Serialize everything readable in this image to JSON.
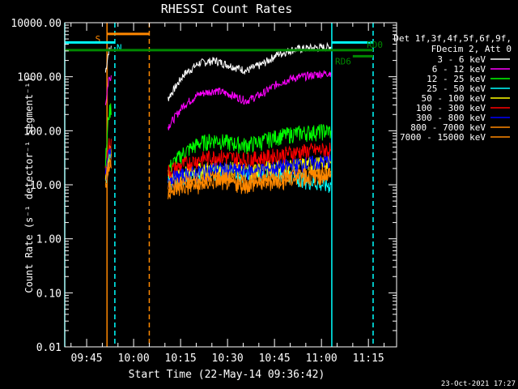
{
  "chart_data": {
    "type": "line",
    "title": "RHESSI Count Rates",
    "xlabel": "Start Time (22-May-14 09:36:42)",
    "ylabel": "Count Rate (s⁻¹ detector⁻¹ segment⁻¹)",
    "y_scale": "log",
    "ylim": [
      0.01,
      10000
    ],
    "xlim_minutes_after_0936": [
      2,
      108
    ],
    "y_ticks": [
      "10000.00",
      "1000.00",
      "100.00",
      "10.00",
      "1.00",
      "0.10",
      "0.01"
    ],
    "x_ticks": [
      "09:45",
      "10:00",
      "10:15",
      "10:30",
      "10:45",
      "11:00",
      "11:15"
    ],
    "legend_header": [
      "Det 1f,3f,4f,5f,6f,9f,",
      "FDecim 2, Att 0"
    ],
    "series": [
      {
        "name": "3 - 6 keV",
        "color": "#ffffff",
        "x": [
          15.0,
          16.0,
          17.0,
          35.0,
          40.0,
          45.0,
          50.0,
          55.0,
          60.0,
          65.0,
          70.0,
          75.0,
          80.0,
          85.0,
          87.0
        ],
        "y": [
          1200,
          3000,
          3500,
          400,
          1100,
          1800,
          2000,
          1600,
          1300,
          1700,
          2600,
          3200,
          3400,
          3500,
          3600
        ]
      },
      {
        "name": "6 - 12 keV",
        "color": "#ff00ff",
        "x": [
          15.0,
          16.0,
          17.0,
          35.0,
          40.0,
          45.0,
          50.0,
          55.0,
          60.0,
          65.0,
          70.0,
          75.0,
          80.0,
          85.0,
          87.0
        ],
        "y": [
          300,
          900,
          1100,
          120,
          300,
          480,
          560,
          470,
          360,
          480,
          750,
          950,
          1050,
          1150,
          1200
        ]
      },
      {
        "name": "12 - 25 keV",
        "color": "#00ff00",
        "x": [
          15.0,
          16.0,
          17.0,
          35.0,
          40.0,
          45.0,
          50.0,
          55.0,
          60.0,
          65.0,
          70.0,
          75.0,
          80.0,
          85.0,
          87.0
        ],
        "y": [
          25,
          200,
          300,
          20,
          40,
          60,
          70,
          60,
          55,
          65,
          80,
          90,
          95,
          100,
          100
        ]
      },
      {
        "name": "25 - 50 keV",
        "color": "#00ffff",
        "x": [
          15.0,
          16.0,
          17.0,
          35.0,
          40.0,
          45.0,
          50.0,
          55.0,
          60.0,
          65.0,
          70.0,
          75.0,
          80.0,
          85.0,
          87.0
        ],
        "y": [
          10,
          30,
          35,
          12,
          14,
          16,
          18,
          17,
          16,
          17,
          18,
          15,
          12,
          10,
          10
        ]
      },
      {
        "name": "50 - 100 keV",
        "color": "#ffff00",
        "x": [
          15.0,
          16.0,
          17.0,
          35.0,
          40.0,
          45.0,
          50.0,
          55.0,
          60.0,
          65.0,
          70.0,
          75.0,
          80.0,
          85.0,
          87.0
        ],
        "y": [
          14,
          40,
          45,
          14,
          17,
          19,
          21,
          20,
          19,
          20,
          22,
          23,
          24,
          25,
          25
        ]
      },
      {
        "name": "100 - 300 keV",
        "color": "#ff0000",
        "x": [
          15.0,
          16.0,
          17.0,
          35.0,
          40.0,
          45.0,
          50.0,
          55.0,
          60.0,
          65.0,
          70.0,
          75.0,
          80.0,
          85.0,
          87.0
        ],
        "y": [
          18,
          55,
          60,
          18,
          24,
          30,
          34,
          32,
          30,
          32,
          36,
          40,
          43,
          45,
          45
        ]
      },
      {
        "name": "300 - 800 keV",
        "color": "#0000ff",
        "x": [
          15.0,
          16.0,
          17.0,
          35.0,
          40.0,
          45.0,
          50.0,
          55.0,
          60.0,
          65.0,
          70.0,
          75.0,
          80.0,
          85.0,
          87.0
        ],
        "y": [
          13,
          35,
          40,
          13,
          15,
          17,
          20,
          19,
          18,
          19,
          21,
          23,
          25,
          27,
          28
        ]
      },
      {
        "name": "800 - 7000 keV",
        "color": "#ff8800",
        "x": [
          15.0,
          16.0,
          17.0,
          35.0,
          40.0,
          45.0,
          50.0,
          55.0,
          60.0,
          65.0,
          70.0,
          75.0,
          80.0,
          85.0,
          87.0
        ],
        "y": [
          10,
          25,
          30,
          9,
          11,
          12,
          14,
          13,
          12,
          13,
          14,
          15,
          16,
          17,
          18
        ]
      },
      {
        "name": "7000 - 15000 keV",
        "color": "#ff8800",
        "x": [
          15.0,
          16.0,
          17.0,
          35.0,
          40.0,
          45.0,
          50.0,
          55.0,
          60.0,
          65.0,
          70.0,
          75.0,
          80.0,
          85.0,
          87.0
        ],
        "y": [
          8,
          20,
          25,
          8,
          9,
          10,
          12,
          11,
          10,
          11,
          12,
          13,
          14,
          15,
          16
        ]
      }
    ],
    "vertical_markers": [
      {
        "x": 2,
        "color": "#00ffff",
        "style": "solid"
      },
      {
        "x": 15.5,
        "color": "#ff8800",
        "style": "solid"
      },
      {
        "x": 18.0,
        "color": "#00ffff",
        "style": "dashed"
      },
      {
        "x": 29.0,
        "color": "#ff8800",
        "style": "dashed"
      },
      {
        "x": 87.3,
        "color": "#00ffff",
        "style": "solid"
      },
      {
        "x": 100.5,
        "color": "#00ffff",
        "style": "dashed"
      }
    ],
    "horizontal_bars": [
      {
        "label": "S",
        "color": "#ff8800",
        "x0": 15.5,
        "x1": 29.0,
        "y": 6200
      },
      {
        "label": "N",
        "color": "#00ffff",
        "x0": 2,
        "x1": 18.0,
        "y": 4300
      },
      {
        "label": "",
        "color": "#00ffff",
        "x0": 87.3,
        "x1": 100.5,
        "y": 4300
      },
      {
        "label": "RD0",
        "color": "#008800",
        "x0": 2,
        "x1": 100.5,
        "y": 3100
      },
      {
        "label": "RD6",
        "color": "#008800",
        "x0": 94.0,
        "x1": 100.5,
        "y": 2400
      }
    ],
    "footer_date": "23-Oct-2021 17:27"
  }
}
